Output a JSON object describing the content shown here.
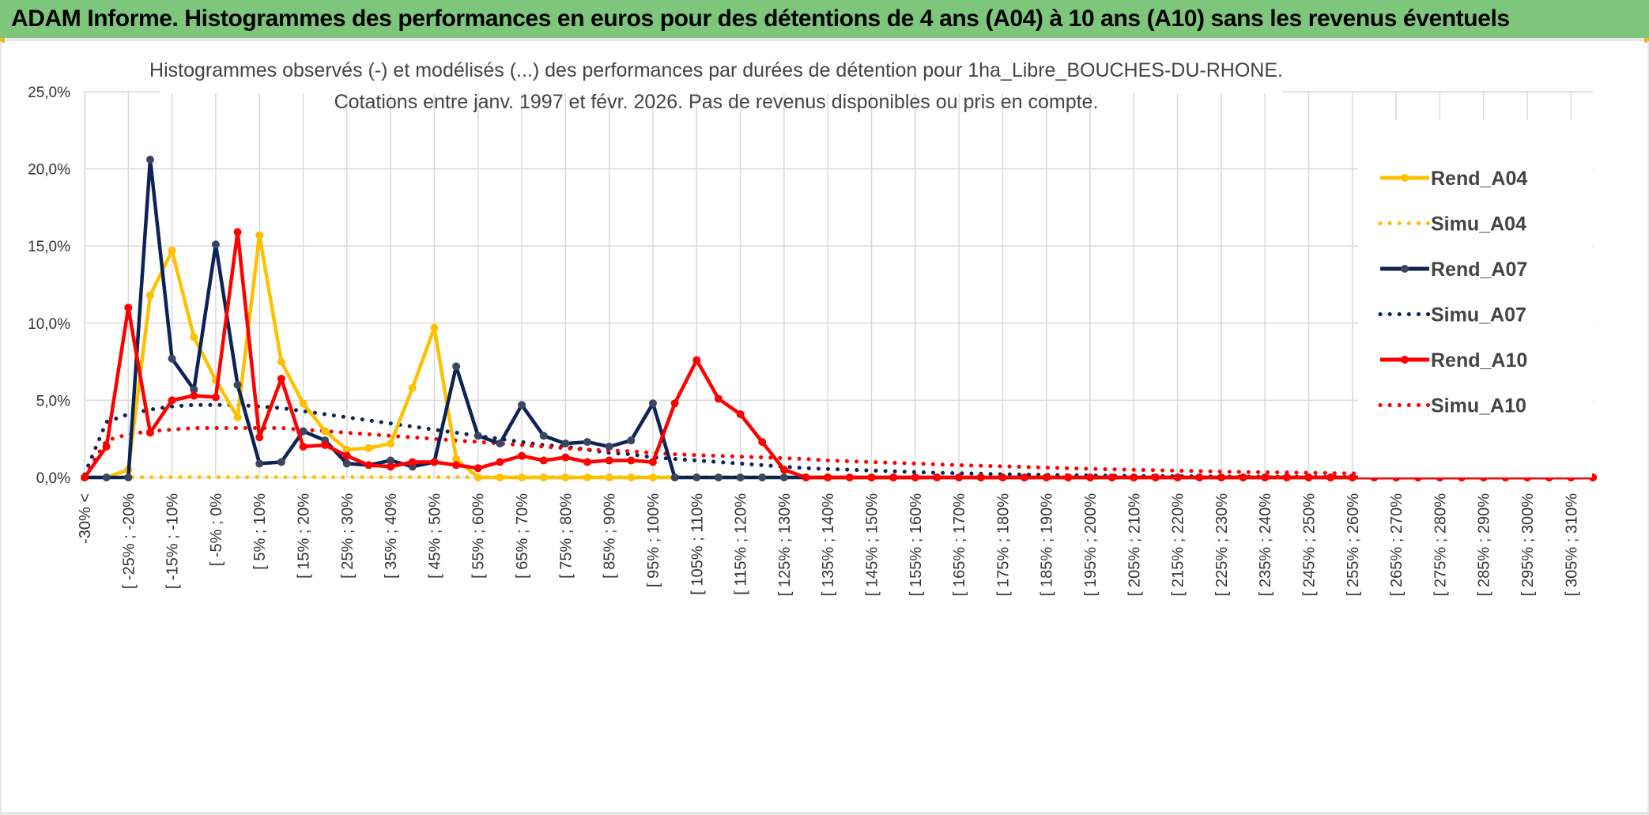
{
  "banner": {
    "title": "ADAM Informe. Histogrammes des performances en euros pour des détentions de 4 ans (A04) à 10 ans (A10) sans les revenus éventuels"
  },
  "colors": {
    "banner": "#7dc67b",
    "A04": "#ffc000",
    "A07": "#0c2356",
    "A10": "#ff0000",
    "grid": "#d9d9d9"
  },
  "chart_data": {
    "type": "line",
    "title_line1": "Histogrammes observés (-) et modélisés (...) des performances par durées de détention pour 1ha_Libre_BOUCHES-DU-RHONE.",
    "title_line2": "Cotations entre janv. 1997 et févr. 2026. Pas de revenus disponibles ou pris en compte.",
    "ylim": [
      0,
      25
    ],
    "y_ticks": [
      "0,0%",
      "5,0%",
      "10,0%",
      "15,0%",
      "20,0%",
      "25,0%"
    ],
    "x_labels": [
      "-30% <",
      "[ -25% ; -20%",
      "[ -15% ; -10%",
      "[ -5% ; 0%",
      "[ 5% ; 10%",
      "[ 15% ; 20%",
      "[ 25% ; 30%",
      "[ 35% ; 40%",
      "[ 45% ; 50%",
      "[ 55% ; 60%",
      "[ 65% ; 70%",
      "[ 75% ; 80%",
      "[ 85% ; 90%",
      "[ 95% ; 100%",
      "[ 105% ; 110%",
      "[ 115% ; 120%",
      "[ 125% ; 130%",
      "[ 135% ; 140%",
      "[ 145% ; 150%",
      "[ 155% ; 160%",
      "[ 165% ; 170%",
      "[ 175% ; 180%",
      "[ 185% ; 190%",
      "[ 195% ; 200%",
      "[ 205% ; 210%",
      "[ 215% ; 220%",
      "[ 225% ; 230%",
      "[ 235% ; 240%",
      "[ 245% ; 250%",
      "[ 255% ; 260%",
      "[ 265% ; 270%",
      "[ 275% ; 280%",
      "[ 285% ; 290%",
      "[ 295% ; 300%",
      "[ 305% ; 310%"
    ],
    "n_points": 70,
    "series": [
      {
        "name": "Rend_A04",
        "style": "solid",
        "color": "#ffc000",
        "values": [
          0,
          0,
          0.5,
          11.8,
          14.7,
          9.1,
          6.3,
          3.9,
          15.7,
          7.5,
          4.8,
          3.0,
          1.8,
          1.9,
          2.2,
          5.8,
          9.7,
          1.2,
          0,
          0,
          0,
          0,
          0,
          0,
          0,
          0,
          0,
          0,
          0,
          0,
          0,
          0,
          0,
          0,
          0,
          0,
          0,
          0,
          0,
          0,
          0,
          0,
          0,
          0,
          0,
          0,
          0,
          0,
          0,
          0,
          0,
          0,
          0,
          0,
          0,
          0,
          0,
          0,
          0,
          0,
          0,
          0,
          0,
          0,
          0,
          0,
          0,
          0,
          0,
          0
        ]
      },
      {
        "name": "Simu_A04",
        "style": "dotted",
        "color": "#ffc000",
        "values": [
          0,
          0.02,
          0.02,
          0.02,
          0.02,
          0.02,
          0.02,
          0.02,
          0.02,
          0.02,
          0.02,
          0.02,
          0.02,
          0.02,
          0.02,
          0.02,
          0.02,
          0.02,
          0.02,
          0.02,
          0.02,
          0.02,
          0.02,
          0.02,
          0.02,
          0.02,
          0.02,
          0.02,
          0.02,
          0.02,
          0.02,
          0.02,
          0,
          0,
          0,
          0,
          0,
          0,
          0,
          0,
          0,
          0,
          0,
          0,
          0,
          0,
          0,
          0,
          0,
          0,
          0,
          0,
          0,
          0,
          0,
          0,
          0,
          0,
          0,
          0,
          0,
          0,
          0,
          0,
          0,
          0,
          0,
          0,
          0,
          0
        ]
      },
      {
        "name": "Rend_A07",
        "style": "solid",
        "color": "#0c2356",
        "values": [
          0,
          0,
          0,
          20.6,
          7.7,
          5.7,
          15.1,
          6.0,
          0.9,
          1.0,
          3.0,
          2.4,
          0.9,
          0.8,
          1.1,
          0.7,
          1.0,
          7.2,
          2.7,
          2.2,
          4.7,
          2.7,
          2.2,
          2.3,
          2.0,
          2.4,
          4.8,
          0,
          0,
          0,
          0,
          0,
          0,
          0,
          0,
          0,
          0,
          0,
          0,
          0,
          0,
          0,
          0,
          0,
          0,
          0,
          0,
          0,
          0,
          0,
          0,
          0,
          0,
          0,
          0,
          0,
          0,
          0,
          0,
          0,
          0,
          0,
          0,
          0,
          0,
          0,
          0,
          0,
          0,
          0
        ]
      },
      {
        "name": "Simu_A07",
        "style": "dotted",
        "color": "#0c2356",
        "values": [
          0.2,
          3.6,
          4.1,
          4.4,
          4.6,
          4.7,
          4.7,
          4.7,
          4.6,
          4.5,
          4.3,
          4.1,
          3.9,
          3.7,
          3.5,
          3.3,
          3.1,
          2.9,
          2.7,
          2.5,
          2.3,
          2.1,
          2.0,
          1.8,
          1.6,
          1.5,
          1.3,
          1.2,
          1.1,
          1.0,
          0.9,
          0.8,
          0.7,
          0.6,
          0.55,
          0.5,
          0.45,
          0.4,
          0.35,
          0.3,
          0.27,
          0.24,
          0.21,
          0.19,
          0.17,
          0.15,
          0.13,
          0.12,
          0.1,
          0.09,
          0.08,
          0.07,
          0.06,
          0.05,
          0.05,
          0.04,
          0.04,
          0.03,
          0.03,
          0.03,
          0.02,
          0.02,
          0.02,
          0.02,
          0.01,
          0.01,
          0.01,
          0.01,
          0.01,
          0.01
        ]
      },
      {
        "name": "Rend_A10",
        "style": "solid",
        "color": "#ff0000",
        "values": [
          0,
          2.0,
          11.0,
          2.9,
          5.0,
          5.3,
          5.2,
          15.9,
          2.6,
          6.4,
          2.0,
          2.1,
          1.4,
          0.8,
          0.7,
          1.0,
          1.0,
          0.8,
          0.6,
          1.0,
          1.4,
          1.1,
          1.3,
          1.0,
          1.1,
          1.1,
          1.0,
          4.8,
          7.6,
          5.1,
          4.1,
          2.3,
          0.5,
          0,
          0,
          0,
          0,
          0,
          0,
          0,
          0,
          0,
          0,
          0,
          0,
          0,
          0,
          0,
          0,
          0,
          0,
          0,
          0,
          0,
          0,
          0,
          0,
          0,
          0,
          0,
          0,
          0,
          0,
          0,
          0,
          0,
          0,
          0,
          0,
          0
        ]
      },
      {
        "name": "Simu_A10",
        "style": "dotted",
        "color": "#ff0000",
        "values": [
          0.1,
          2.4,
          2.8,
          3.0,
          3.1,
          3.2,
          3.2,
          3.2,
          3.2,
          3.2,
          3.1,
          3.0,
          2.9,
          2.8,
          2.7,
          2.6,
          2.5,
          2.4,
          2.3,
          2.2,
          2.1,
          2.0,
          1.9,
          1.8,
          1.75,
          1.7,
          1.6,
          1.5,
          1.45,
          1.4,
          1.35,
          1.3,
          1.25,
          1.2,
          1.1,
          1.05,
          1.0,
          0.95,
          0.9,
          0.85,
          0.8,
          0.76,
          0.72,
          0.68,
          0.64,
          0.6,
          0.56,
          0.53,
          0.5,
          0.47,
          0.44,
          0.41,
          0.38,
          0.36,
          0.34,
          0.32,
          0.3,
          0.28,
          0.26,
          0.24,
          0.22,
          0.21,
          0.2,
          0.19,
          0.18,
          0.17,
          0.16,
          0.15,
          0.14,
          0.13
        ]
      }
    ],
    "legend": [
      "Rend_A04",
      "Simu_A04",
      "Rend_A07",
      "Simu_A07",
      "Rend_A10",
      "Simu_A10"
    ]
  }
}
